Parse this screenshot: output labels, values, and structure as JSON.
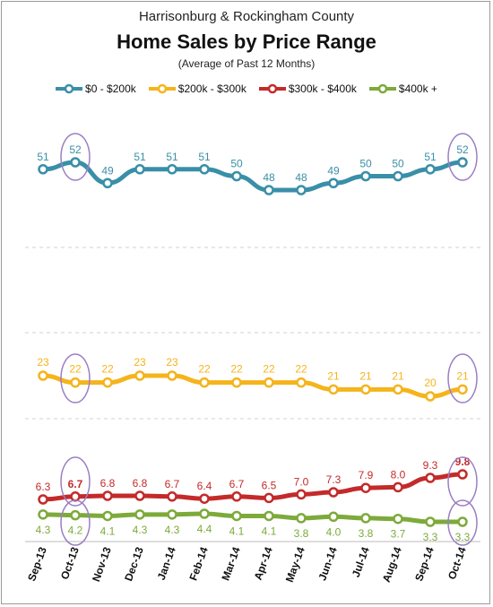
{
  "chart_data": {
    "type": "line",
    "title": "Home Sales by Price Range",
    "supertitle": "Harrisonburg & Rockingham County",
    "subtitle": "(Average of Past 12 Months)",
    "categories": [
      "Sep-13",
      "Oct-13",
      "Nov-13",
      "Dec-13",
      "Jan-14",
      "Feb-14",
      "Mar-14",
      "Apr-14",
      "May-14",
      "Jun-14",
      "Jul-14",
      "Aug-14",
      "Sep-14",
      "Oct-14"
    ],
    "series": [
      {
        "name": "$0 - $200k",
        "color": "#3a8fa8",
        "values": [
          51,
          52,
          49,
          51,
          51,
          51,
          50,
          48,
          48,
          49,
          50,
          50,
          51,
          52
        ],
        "labels": [
          "51",
          "52",
          "49",
          "51",
          "51",
          "51",
          "50",
          "48",
          "48",
          "49",
          "50",
          "50",
          "51",
          "52"
        ]
      },
      {
        "name": "$200k - $300k",
        "color": "#f5b41c",
        "values": [
          23,
          22,
          22,
          23,
          23,
          22,
          22,
          22,
          22,
          21,
          21,
          21,
          20,
          21
        ],
        "labels": [
          "23",
          "22",
          "22",
          "23",
          "23",
          "22",
          "22",
          "22",
          "22",
          "21",
          "21",
          "21",
          "20",
          "21"
        ]
      },
      {
        "name": "$300k - $400k",
        "color": "#c42a2a",
        "values": [
          6.3,
          6.7,
          6.8,
          6.8,
          6.7,
          6.4,
          6.7,
          6.5,
          7.0,
          7.3,
          7.9,
          8.0,
          9.3,
          9.8
        ],
        "labels": [
          "6.3",
          "6.7",
          "6.8",
          "6.8",
          "6.7",
          "6.4",
          "6.7",
          "6.5",
          "7.0",
          "7.3",
          "7.9",
          "8.0",
          "9.3",
          "9.8"
        ]
      },
      {
        "name": "$400k +",
        "color": "#7daa3a",
        "values": [
          4.3,
          4.2,
          4.1,
          4.3,
          4.3,
          4.4,
          4.1,
          4.1,
          3.8,
          4.0,
          3.8,
          3.7,
          3.3,
          3.3
        ],
        "labels": [
          "4.3",
          "4.2",
          "4.1",
          "4.3",
          "4.3",
          "4.4",
          "4.1",
          "4.1",
          "3.8",
          "4.0",
          "3.8",
          "3.7",
          "3.3",
          "3.3"
        ]
      }
    ],
    "highlighted_categories": [
      "Oct-13",
      "Oct-14"
    ],
    "highlight_color": "#9b7fc4",
    "legend_position": "top",
    "grid": "dashed horizontal",
    "axis_breaks": "y-axis broken between series"
  }
}
